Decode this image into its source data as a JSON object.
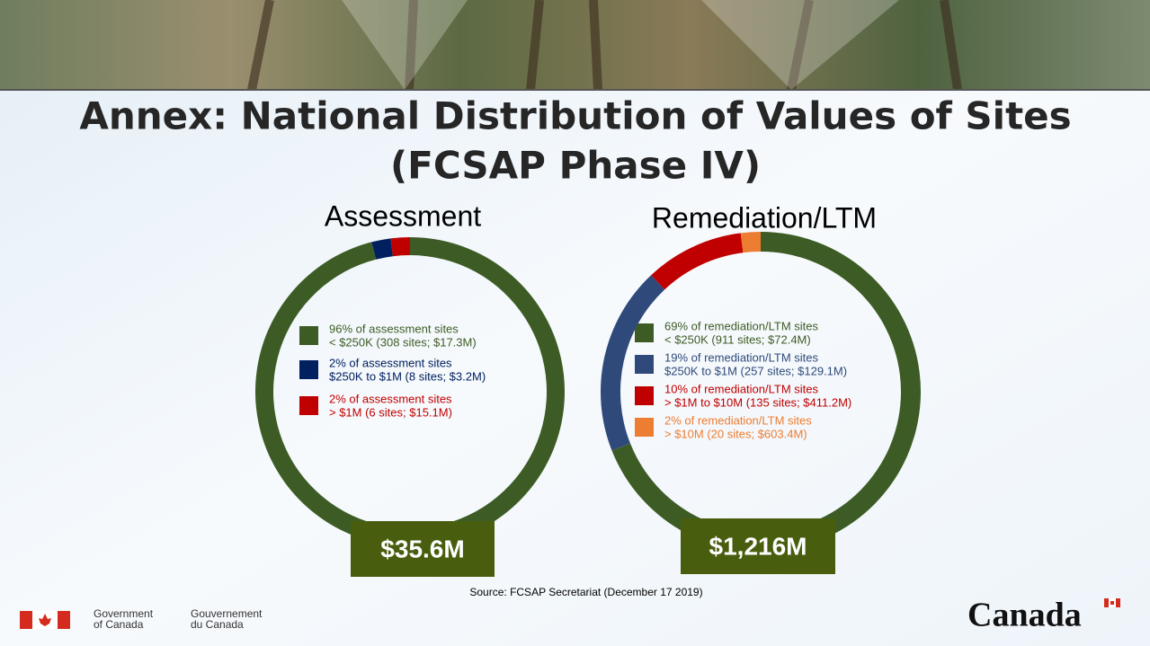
{
  "title": "Annex: National Distribution of Values of Sites",
  "subtitle": "(FCSAP Phase IV)",
  "source": "Source: FCSAP Secretariat (December 17 2019)",
  "footer": {
    "government_en": [
      "Government",
      "of Canada"
    ],
    "government_fr": [
      "Gouvernement",
      "du Canada"
    ],
    "wordmark": "Canada"
  },
  "chart_data": [
    {
      "type": "donut",
      "title": "Assessment",
      "total": "$35.6M",
      "series": [
        {
          "name": "96% of assessment sites",
          "detail": "< $250K (308 sites; $17.3M)",
          "color": "#3d5c25",
          "value": 96
        },
        {
          "name": "2% of assessment sites",
          "detail": "$250K to $1M (8 sites; $3.2M)",
          "color": "#002060",
          "value": 2
        },
        {
          "name": "2% of assessment sites",
          "detail": "> $1M (6 sites; $15.1M)",
          "color": "#c00000",
          "value": 2
        }
      ]
    },
    {
      "type": "donut",
      "title": "Remediation/LTM",
      "total": "$1,216M",
      "series": [
        {
          "name": "69% of remediation/LTM sites",
          "detail": "< $250K (911 sites; $72.4M)",
          "color": "#3d5c25",
          "value": 69
        },
        {
          "name": "19% of remediation/LTM sites",
          "detail": "$250K to $1M (257 sites; $129.1M)",
          "color": "#2f4a7a",
          "value": 19
        },
        {
          "name": "10% of remediation/LTM sites",
          "detail": "> $1M to $10M (135 sites; $411.2M)",
          "color": "#c00000",
          "value": 10
        },
        {
          "name": "2% of remediation/LTM sites",
          "detail": "> $10M (20 sites; $603.4M)",
          "color": "#ed7d31",
          "value": 2
        }
      ]
    }
  ]
}
